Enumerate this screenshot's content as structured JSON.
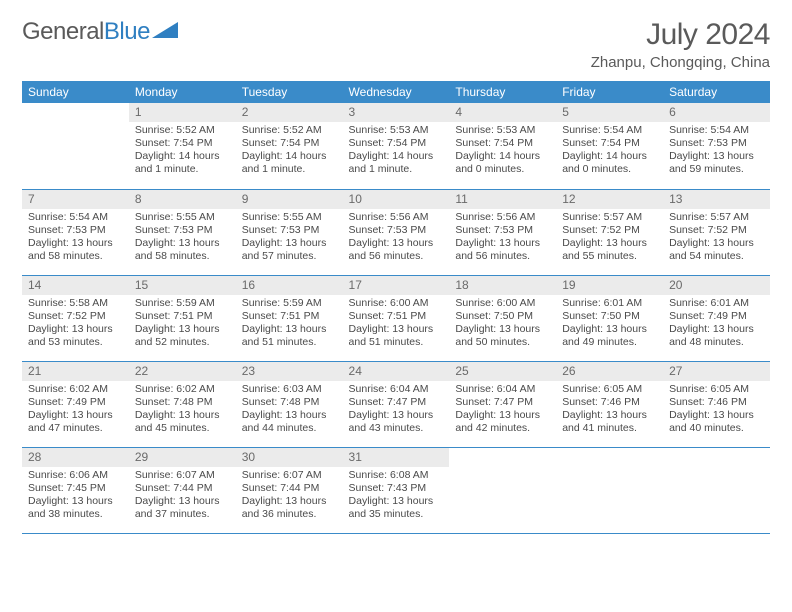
{
  "logo": {
    "part1": "General",
    "part2": "Blue"
  },
  "title": "July 2024",
  "location": "Zhanpu, Chongqing, China",
  "colors": {
    "header_bg": "#3a8bc9",
    "header_text": "#ffffff",
    "daynum_bg": "#ebebeb",
    "text": "#4a4a4a",
    "rule": "#3a8bc9",
    "logo_blue": "#2f7fc1",
    "title_gray": "#5a5a5a"
  },
  "weekdays": [
    "Sunday",
    "Monday",
    "Tuesday",
    "Wednesday",
    "Thursday",
    "Friday",
    "Saturday"
  ],
  "weeks": [
    [
      {
        "num": "",
        "sunrise": "",
        "sunset": "",
        "daylight": ""
      },
      {
        "num": "1",
        "sunrise": "Sunrise: 5:52 AM",
        "sunset": "Sunset: 7:54 PM",
        "daylight": "Daylight: 14 hours and 1 minute."
      },
      {
        "num": "2",
        "sunrise": "Sunrise: 5:52 AM",
        "sunset": "Sunset: 7:54 PM",
        "daylight": "Daylight: 14 hours and 1 minute."
      },
      {
        "num": "3",
        "sunrise": "Sunrise: 5:53 AM",
        "sunset": "Sunset: 7:54 PM",
        "daylight": "Daylight: 14 hours and 1 minute."
      },
      {
        "num": "4",
        "sunrise": "Sunrise: 5:53 AM",
        "sunset": "Sunset: 7:54 PM",
        "daylight": "Daylight: 14 hours and 0 minutes."
      },
      {
        "num": "5",
        "sunrise": "Sunrise: 5:54 AM",
        "sunset": "Sunset: 7:54 PM",
        "daylight": "Daylight: 14 hours and 0 minutes."
      },
      {
        "num": "6",
        "sunrise": "Sunrise: 5:54 AM",
        "sunset": "Sunset: 7:53 PM",
        "daylight": "Daylight: 13 hours and 59 minutes."
      }
    ],
    [
      {
        "num": "7",
        "sunrise": "Sunrise: 5:54 AM",
        "sunset": "Sunset: 7:53 PM",
        "daylight": "Daylight: 13 hours and 58 minutes."
      },
      {
        "num": "8",
        "sunrise": "Sunrise: 5:55 AM",
        "sunset": "Sunset: 7:53 PM",
        "daylight": "Daylight: 13 hours and 58 minutes."
      },
      {
        "num": "9",
        "sunrise": "Sunrise: 5:55 AM",
        "sunset": "Sunset: 7:53 PM",
        "daylight": "Daylight: 13 hours and 57 minutes."
      },
      {
        "num": "10",
        "sunrise": "Sunrise: 5:56 AM",
        "sunset": "Sunset: 7:53 PM",
        "daylight": "Daylight: 13 hours and 56 minutes."
      },
      {
        "num": "11",
        "sunrise": "Sunrise: 5:56 AM",
        "sunset": "Sunset: 7:53 PM",
        "daylight": "Daylight: 13 hours and 56 minutes."
      },
      {
        "num": "12",
        "sunrise": "Sunrise: 5:57 AM",
        "sunset": "Sunset: 7:52 PM",
        "daylight": "Daylight: 13 hours and 55 minutes."
      },
      {
        "num": "13",
        "sunrise": "Sunrise: 5:57 AM",
        "sunset": "Sunset: 7:52 PM",
        "daylight": "Daylight: 13 hours and 54 minutes."
      }
    ],
    [
      {
        "num": "14",
        "sunrise": "Sunrise: 5:58 AM",
        "sunset": "Sunset: 7:52 PM",
        "daylight": "Daylight: 13 hours and 53 minutes."
      },
      {
        "num": "15",
        "sunrise": "Sunrise: 5:59 AM",
        "sunset": "Sunset: 7:51 PM",
        "daylight": "Daylight: 13 hours and 52 minutes."
      },
      {
        "num": "16",
        "sunrise": "Sunrise: 5:59 AM",
        "sunset": "Sunset: 7:51 PM",
        "daylight": "Daylight: 13 hours and 51 minutes."
      },
      {
        "num": "17",
        "sunrise": "Sunrise: 6:00 AM",
        "sunset": "Sunset: 7:51 PM",
        "daylight": "Daylight: 13 hours and 51 minutes."
      },
      {
        "num": "18",
        "sunrise": "Sunrise: 6:00 AM",
        "sunset": "Sunset: 7:50 PM",
        "daylight": "Daylight: 13 hours and 50 minutes."
      },
      {
        "num": "19",
        "sunrise": "Sunrise: 6:01 AM",
        "sunset": "Sunset: 7:50 PM",
        "daylight": "Daylight: 13 hours and 49 minutes."
      },
      {
        "num": "20",
        "sunrise": "Sunrise: 6:01 AM",
        "sunset": "Sunset: 7:49 PM",
        "daylight": "Daylight: 13 hours and 48 minutes."
      }
    ],
    [
      {
        "num": "21",
        "sunrise": "Sunrise: 6:02 AM",
        "sunset": "Sunset: 7:49 PM",
        "daylight": "Daylight: 13 hours and 47 minutes."
      },
      {
        "num": "22",
        "sunrise": "Sunrise: 6:02 AM",
        "sunset": "Sunset: 7:48 PM",
        "daylight": "Daylight: 13 hours and 45 minutes."
      },
      {
        "num": "23",
        "sunrise": "Sunrise: 6:03 AM",
        "sunset": "Sunset: 7:48 PM",
        "daylight": "Daylight: 13 hours and 44 minutes."
      },
      {
        "num": "24",
        "sunrise": "Sunrise: 6:04 AM",
        "sunset": "Sunset: 7:47 PM",
        "daylight": "Daylight: 13 hours and 43 minutes."
      },
      {
        "num": "25",
        "sunrise": "Sunrise: 6:04 AM",
        "sunset": "Sunset: 7:47 PM",
        "daylight": "Daylight: 13 hours and 42 minutes."
      },
      {
        "num": "26",
        "sunrise": "Sunrise: 6:05 AM",
        "sunset": "Sunset: 7:46 PM",
        "daylight": "Daylight: 13 hours and 41 minutes."
      },
      {
        "num": "27",
        "sunrise": "Sunrise: 6:05 AM",
        "sunset": "Sunset: 7:46 PM",
        "daylight": "Daylight: 13 hours and 40 minutes."
      }
    ],
    [
      {
        "num": "28",
        "sunrise": "Sunrise: 6:06 AM",
        "sunset": "Sunset: 7:45 PM",
        "daylight": "Daylight: 13 hours and 38 minutes."
      },
      {
        "num": "29",
        "sunrise": "Sunrise: 6:07 AM",
        "sunset": "Sunset: 7:44 PM",
        "daylight": "Daylight: 13 hours and 37 minutes."
      },
      {
        "num": "30",
        "sunrise": "Sunrise: 6:07 AM",
        "sunset": "Sunset: 7:44 PM",
        "daylight": "Daylight: 13 hours and 36 minutes."
      },
      {
        "num": "31",
        "sunrise": "Sunrise: 6:08 AM",
        "sunset": "Sunset: 7:43 PM",
        "daylight": "Daylight: 13 hours and 35 minutes."
      },
      {
        "num": "",
        "sunrise": "",
        "sunset": "",
        "daylight": ""
      },
      {
        "num": "",
        "sunrise": "",
        "sunset": "",
        "daylight": ""
      },
      {
        "num": "",
        "sunrise": "",
        "sunset": "",
        "daylight": ""
      }
    ]
  ]
}
